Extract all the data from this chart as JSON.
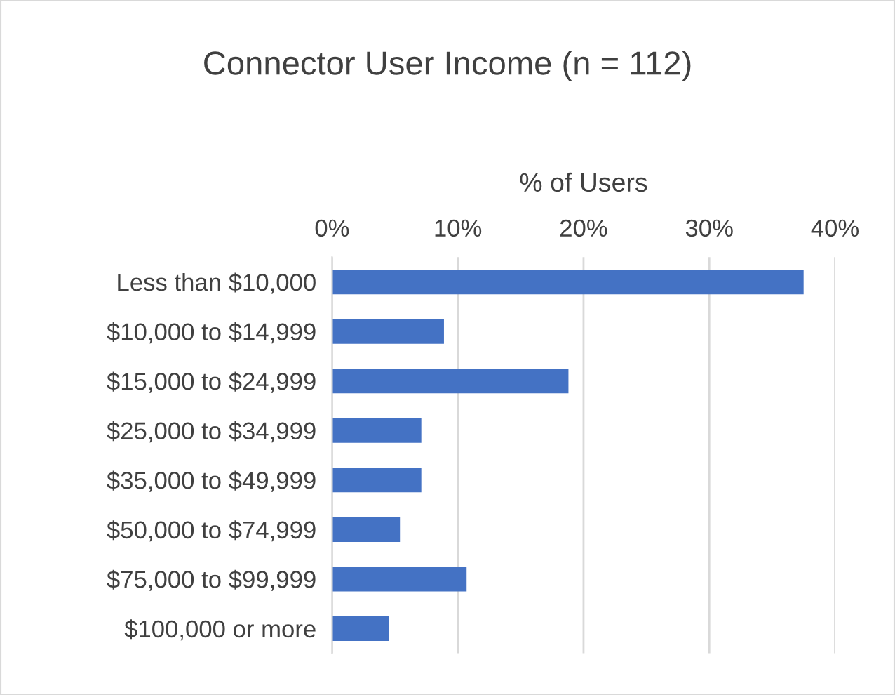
{
  "chart_data": {
    "type": "bar",
    "orientation": "horizontal",
    "title": "Connector User Income (n = 112)",
    "xlabel": "% of Users",
    "categories": [
      "Less than $10,000",
      "$10,000 to $14,999",
      "$15,000 to $24,999",
      "$25,000 to $34,999",
      "$35,000 to $49,999",
      "$50,000 to $74,999",
      "$75,000 to $99,999",
      "$100,000 or more"
    ],
    "values": [
      37.5,
      8.9,
      18.8,
      7.1,
      7.1,
      5.4,
      10.7,
      4.5
    ],
    "color": "#4472c4",
    "xlim": [
      0,
      40
    ],
    "xticks": [
      {
        "value": 0,
        "label": "0%"
      },
      {
        "value": 10,
        "label": "10%"
      },
      {
        "value": 20,
        "label": "20%"
      },
      {
        "value": 30,
        "label": "30%"
      },
      {
        "value": 40,
        "label": "40%"
      }
    ],
    "grid": "x",
    "legend": false
  }
}
